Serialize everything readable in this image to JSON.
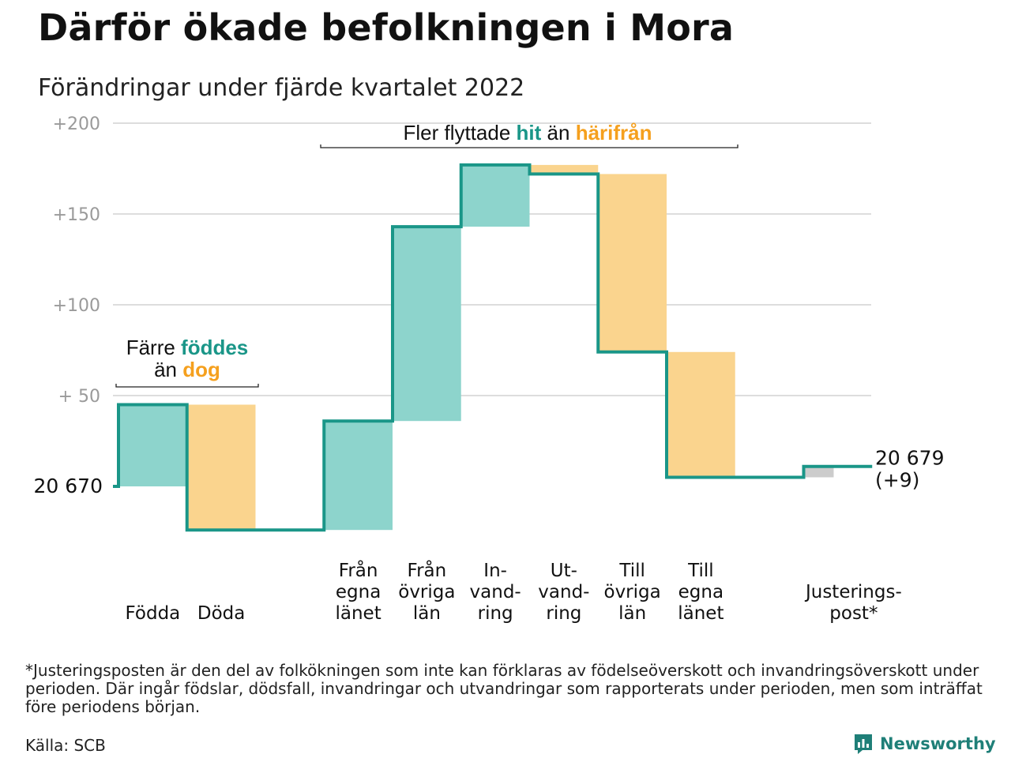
{
  "title": "Därför ökade befolkningen i Mora",
  "subtitle": "Förändringar under fjärde kvartalet 2022",
  "colors": {
    "increase": "#8dd4cc",
    "decrease": "#fad48e",
    "adjustment": "#cccccc",
    "line": "#1a9688",
    "teal_text": "#1a9688",
    "orange_text": "#f5a01e",
    "grid": "#dddddd",
    "tick": "#9a9a9a"
  },
  "chart_data": {
    "type": "waterfall",
    "title": "Därför ökade befolkningen i Mora",
    "subtitle": "Förändringar under fjärde kvartalet 2022",
    "start_label": "20 670",
    "start_value": 20670,
    "end_label_line1": "20 679",
    "end_label_line2": "(+9)",
    "y_ticks": [
      "+200",
      "+150",
      "+100",
      "+ 50"
    ],
    "y_tick_values": [
      200,
      150,
      100,
      50
    ],
    "ylim": [
      -31,
      200
    ],
    "steps": [
      {
        "label": [
          "",
          "",
          "Födda"
        ],
        "value": 45,
        "kind": "increase"
      },
      {
        "label": [
          "",
          "",
          "Döda"
        ],
        "value": -69,
        "kind": "decrease"
      },
      {
        "label": [],
        "value": 0,
        "kind": "none"
      },
      {
        "label": [
          "Från",
          "egna",
          "länet"
        ],
        "value": 60,
        "kind": "increase"
      },
      {
        "label": [
          "Från",
          "övriga",
          "län"
        ],
        "value": 107,
        "kind": "increase"
      },
      {
        "label": [
          "In-",
          "vand-",
          "ring"
        ],
        "value": 34,
        "kind": "increase"
      },
      {
        "label": [
          "Ut-",
          "vand-",
          "ring"
        ],
        "value": -5,
        "kind": "decrease"
      },
      {
        "label": [
          "Till",
          "övriga",
          "län"
        ],
        "value": -98,
        "kind": "decrease"
      },
      {
        "label": [
          "Till",
          "egna",
          "länet"
        ],
        "value": -69,
        "kind": "decrease"
      },
      {
        "label": [],
        "value": 0,
        "kind": "none"
      },
      {
        "label": [
          "",
          "Justerings-",
          "post*"
        ],
        "value": 6,
        "kind": "adjustment"
      }
    ],
    "annotations": [
      {
        "text_parts": [
          {
            "t": "Färre ",
            "c": "dark"
          },
          {
            "t": "föddes",
            "c": "teal"
          }
        ],
        "text_parts2": [
          {
            "t": "än ",
            "c": "dark"
          },
          {
            "t": "dog",
            "c": "orange"
          }
        ]
      },
      {
        "text_parts": [
          {
            "t": "Fler flyttade ",
            "c": "dark"
          },
          {
            "t": "hit",
            "c": "teal"
          },
          {
            "t": " än ",
            "c": "dark"
          },
          {
            "t": "härifrån",
            "c": "orange"
          }
        ]
      }
    ]
  },
  "footnote": "*Justeringsposten är den del av folkökningen som inte kan förklaras av födelseöverskott och invandringsöverskott under perioden. Där ingår födslar, dödsfall, invandringar och utvandringar som rapporterats under perioden, men som inträffat före periodens början.",
  "source": "Källa: SCB",
  "brand": {
    "name": "Newsworthy",
    "icon": "newsworthy-logo-icon"
  }
}
